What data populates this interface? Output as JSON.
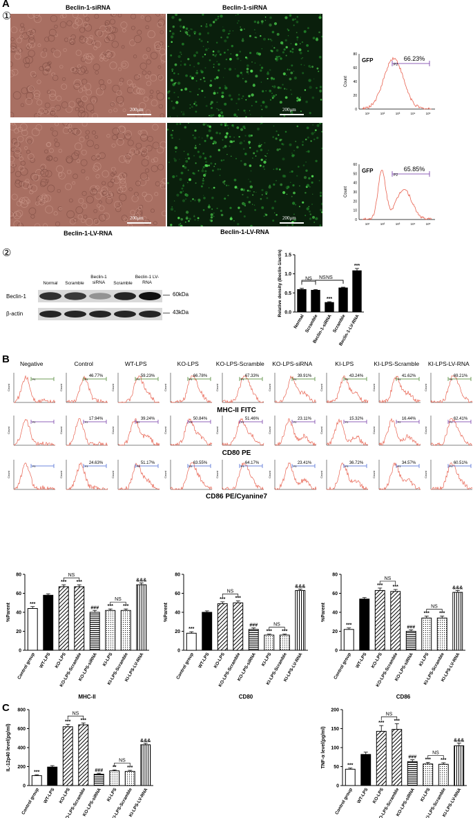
{
  "panel_labels": {
    "A": "A",
    "B": "B",
    "C": "C",
    "one": "①",
    "two": "②"
  },
  "section_a": {
    "images": [
      {
        "title": "Beclin-1-siRNA",
        "scale": "200μm",
        "kind": "brightfield"
      },
      {
        "title": "Beclin-1-siRNA",
        "scale": "200μm",
        "kind": "fluorescence"
      },
      {
        "title": "Beclin-1-LV-RNA",
        "scale": "200μm",
        "kind": "brightfield"
      },
      {
        "title": "Beclin-1-LV-RNA",
        "scale": "200μm",
        "kind": "fluorescence"
      }
    ],
    "flow": [
      {
        "label": "GFP",
        "gate": "P2",
        "percent": "66.23%",
        "yticks": [
          "80",
          "60",
          "40",
          "20",
          "0"
        ],
        "xticks": [
          "10¹",
          "10²",
          "10³",
          "10⁴",
          "10⁵"
        ],
        "ylabel": "Count"
      },
      {
        "label": "GFP",
        "gate": "P2",
        "percent": "65.85%",
        "yticks": [
          "60",
          "50",
          "40",
          "30",
          "20",
          "10",
          "0"
        ],
        "xticks": [
          "10¹",
          "10²",
          "10³",
          "10⁴",
          "10⁵"
        ],
        "ylabel": "Count"
      }
    ]
  },
  "western": {
    "lanes": [
      "Normal",
      "Scramble",
      "Beclin-1 siRNA",
      "Scramble",
      "Beclin-1 LV-RNA"
    ],
    "rows": [
      {
        "name": "Beclin-1",
        "kda": "60kDa"
      },
      {
        "name": "β-actin",
        "kda": "43kDa"
      }
    ]
  },
  "chart_data": [
    {
      "type": "bar",
      "ylabel": "Relative density (Beclin-1/actin)",
      "categories": [
        "Normal",
        "Scramble",
        "Beclin-1-siRNA",
        "Scramble",
        "Beclin-1-LV-RNA"
      ],
      "values": [
        0.59,
        0.57,
        0.25,
        0.63,
        1.08
      ],
      "errors": [
        0.03,
        0.02,
        0.02,
        0.02,
        0.06
      ],
      "ylim": [
        0,
        1.5
      ],
      "yticks": [
        "0.0",
        "0.5",
        "1.0",
        "1.5"
      ],
      "sig": [
        "",
        "",
        "***",
        "",
        "***"
      ],
      "brackets": [
        {
          "from": 0,
          "to": 1,
          "label": "NS"
        },
        {
          "from": 1,
          "to": 3,
          "label": "NS"
        },
        {
          "from": 0,
          "to": 3,
          "label": "NS"
        }
      ],
      "colors": [
        "#000000"
      ]
    },
    {
      "type": "bar",
      "xlabel": "MHC-II",
      "ylabel": "%Parent",
      "categories": [
        "Control group",
        "WT-LPS",
        "KO-LPS",
        "KO-LPS-Scramble",
        "KO-LPS-siRNA",
        "KI-LPS",
        "KI-LPS-Scramble",
        "KI-LPS-LV-RNA"
      ],
      "values": [
        44,
        58,
        67,
        67,
        40,
        42,
        42,
        69
      ],
      "errors": [
        2,
        1.5,
        2,
        2,
        2,
        1.5,
        1.5,
        2
      ],
      "ylim": [
        0,
        80
      ],
      "yticks": [
        "0",
        "20",
        "40",
        "60",
        "80"
      ],
      "sig": [
        "***",
        "",
        "***",
        "***",
        "###",
        "***",
        "***",
        "&&&"
      ],
      "brackets": [
        {
          "from": 2,
          "to": 3,
          "label": "NS"
        },
        {
          "from": 5,
          "to": 6,
          "label": "NS"
        }
      ]
    },
    {
      "type": "bar",
      "xlabel": "CD80",
      "ylabel": "%Parent",
      "categories": [
        "Control group",
        "WT-LPS",
        "KO-LPS",
        "KO-LPS-Scramble",
        "KO-LPS-siRNA",
        "KI-LPS",
        "KI-LPS-Scramble",
        "KI-LPS-LV-RNA"
      ],
      "values": [
        18,
        40,
        49,
        50,
        22,
        16,
        16,
        63
      ],
      "errors": [
        1.5,
        1.5,
        2,
        2,
        1.5,
        1,
        1,
        1.5
      ],
      "ylim": [
        0,
        80
      ],
      "yticks": [
        "0",
        "20",
        "40",
        "60",
        "80"
      ],
      "sig": [
        "***",
        "",
        "***",
        "***",
        "###",
        "***",
        "***",
        "&&&"
      ],
      "brackets": [
        {
          "from": 2,
          "to": 3,
          "label": "NS"
        },
        {
          "from": 5,
          "to": 6,
          "label": "NS"
        }
      ]
    },
    {
      "type": "bar",
      "xlabel": "CD86",
      "ylabel": "%Parent",
      "categories": [
        "Control group",
        "WT-LPS",
        "KO-LPS",
        "KO-LPS-Scramble",
        "KO-LPS-siRNA",
        "KI-LPS",
        "KI-LPS-Scramble",
        "KI-LPS-LV-RNA"
      ],
      "values": [
        22,
        54,
        63,
        62,
        20,
        34,
        34,
        61
      ],
      "errors": [
        1.5,
        1.5,
        2.5,
        2,
        1.5,
        2,
        2,
        2
      ],
      "ylim": [
        0,
        80
      ],
      "yticks": [
        "0",
        "20",
        "40",
        "60",
        "80"
      ],
      "sig": [
        "***",
        "",
        "***",
        "***",
        "###",
        "***",
        "***",
        "&&&"
      ],
      "brackets": [
        {
          "from": 2,
          "to": 3,
          "label": "NS"
        },
        {
          "from": 5,
          "to": 6,
          "label": "NS"
        }
      ]
    },
    {
      "type": "bar",
      "ylabel": "IL-12p40 level(pg/ml)",
      "categories": [
        "Control group",
        "WT-LPS",
        "KO-LPS",
        "KO-LPS-Scramble",
        "KO-LPS-siRNA",
        "KI-LPS",
        "KI-LPS-Scramble",
        "KI-LPS-LV-RNA"
      ],
      "values": [
        105,
        195,
        620,
        640,
        120,
        155,
        150,
        430
      ],
      "errors": [
        8,
        15,
        25,
        20,
        10,
        10,
        10,
        15
      ],
      "ylim": [
        0,
        800
      ],
      "yticks": [
        "0",
        "200",
        "400",
        "600",
        "800"
      ],
      "sig": [
        "***",
        "",
        "***",
        "***",
        "###",
        "**",
        "***",
        "&&&"
      ],
      "brackets": [
        {
          "from": 2,
          "to": 3,
          "label": "NS"
        },
        {
          "from": 5,
          "to": 6,
          "label": "NS"
        }
      ]
    },
    {
      "type": "bar",
      "ylabel": "TNF-α level(pg/ml)",
      "categories": [
        "Control group",
        "WT-LPS",
        "KO-LPS",
        "KO-LPS-Scramble",
        "KO-LPS-siRNA",
        "KI-LPS",
        "KI-LPS-Scramble",
        "KI-LPS-LV-RNA"
      ],
      "values": [
        43,
        82,
        143,
        148,
        63,
        57,
        56,
        105
      ],
      "errors": [
        3,
        6,
        15,
        15,
        5,
        4,
        4,
        7
      ],
      "ylim": [
        0,
        200
      ],
      "yticks": [
        "0",
        "50",
        "100",
        "150",
        "200"
      ],
      "sig": [
        "***",
        "",
        "***",
        "***",
        "###",
        "***",
        "***",
        "&&&"
      ],
      "brackets": [
        {
          "from": 2,
          "to": 3,
          "label": "NS"
        },
        {
          "from": 5,
          "to": 6,
          "label": "NS"
        }
      ]
    }
  ],
  "section_b": {
    "columns": [
      "Negative",
      "Control",
      "WT-LPS",
      "KO-LPS",
      "KO-LPS-Scramble",
      "KO-LPS-siRNA",
      "KI-LPS",
      "KI-LPS-Scramble",
      "KI-LPS-LV-RNA"
    ],
    "rows": [
      {
        "marker": "MHC-II FITC",
        "gate": "P4",
        "gate_color": "#3b7a1e",
        "percents": [
          "",
          "46.77%",
          "59.23%",
          "66.78%",
          "67.33%",
          "39.91%",
          "43.24%",
          "41.62%",
          "69.21%"
        ]
      },
      {
        "marker": "CD80 PE",
        "gate": "P2",
        "gate_color": "#6a2ca0",
        "percents": [
          "",
          "17.94%",
          "39.24%",
          "50.84%",
          "51.46%",
          "23.11%",
          "15.32%",
          "16.44%",
          "62.41%"
        ]
      },
      {
        "marker": "CD86 PE/Cyanine7",
        "gate": "P3",
        "gate_color": "#3a5bd0",
        "percents": [
          "",
          "24.63%",
          "51.17%",
          "63.55%",
          "64.17%",
          "23.41%",
          "36.72%",
          "34.57%",
          "60.51%"
        ]
      }
    ],
    "count_label": "Count"
  }
}
